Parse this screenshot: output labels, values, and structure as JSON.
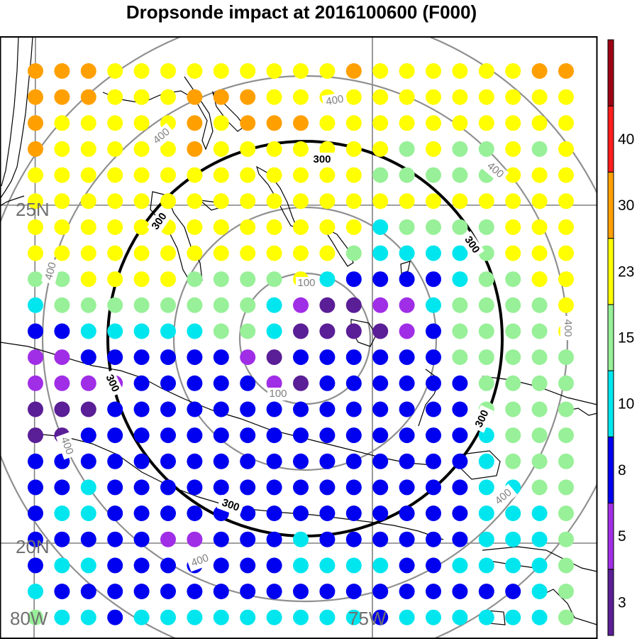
{
  "title": "Dropsonde impact at 2016100600 (F000)",
  "map": {
    "lat_labels": [
      "25N",
      "20N"
    ],
    "lon_labels": [
      "80W",
      "75W"
    ],
    "ring_labels": {
      "inner": "100",
      "middle": "300",
      "outer": "400"
    },
    "coastline_color": "#000000",
    "grid_color": "#808080",
    "range_ring_color": "#909090"
  },
  "colorbar": {
    "tick_labels": [
      "3",
      "5",
      "8",
      "10",
      "15",
      "23",
      "30",
      "40"
    ],
    "colors": [
      "#5a1e96",
      "#a02ee6",
      "#0000f0",
      "#00e6ee",
      "#98f098",
      "#ffff00",
      "#ffa000",
      "#ff1e1e",
      "#9e0014"
    ]
  },
  "dot_grid": {
    "palette": {
      "D": "#5a1e96",
      "P": "#a02ee6",
      "B": "#0000f0",
      "C": "#00e6ee",
      "G": "#98f098",
      "Y": "#ffff00",
      "O": "#ffa000"
    },
    "rows": [
      "OOOYYYYYYYYYOYYYYYYOO",
      "OOOYYYOOOYYYYYYYYYYYY",
      "OYYYYYOYOOOYYYYYYYYYY",
      "OYYYYYOYYYYYYYGYGGYGY",
      "YYYYYYYYYYYYYGGGGGYYY",
      "YYYYYYYYYYYYYYYYYYYYY",
      "YYYYYYYYYYYYYCGGGGYYY",
      "YYYYYYYYYYYYGCCCCGYYY",
      "GGYYYYGGGGYCBBBBCGGYY",
      "CGGGGGGGGCPDDPPCGGGGY",
      "BBCCCCCGGCDDDDPBGGGGY",
      "PPBBBBBBPDBBBBBBGGGGG",
      "PPPPBBBBBPDBBBBBBGGGG",
      "DDDBBBBBBBBBBBBBBGGGG",
      "DDBBBBBBBBBBBBBBBCGGG",
      "BBBBBBBBBBBBBBBBBCGGG",
      "BBCBBBBBBBBBBBBBBCCGG",
      "BCCBBBBBBBBBBBBBBCCCG",
      "BBBBBPPBBBCBBBBBBCCCG",
      "BCCBBBBBBBCCCCBBCCCCG",
      "CBBBBBBBBBBBBBBBBBBCG",
      "GCCBCCCCCCCCCBCCCCCCG"
    ]
  }
}
